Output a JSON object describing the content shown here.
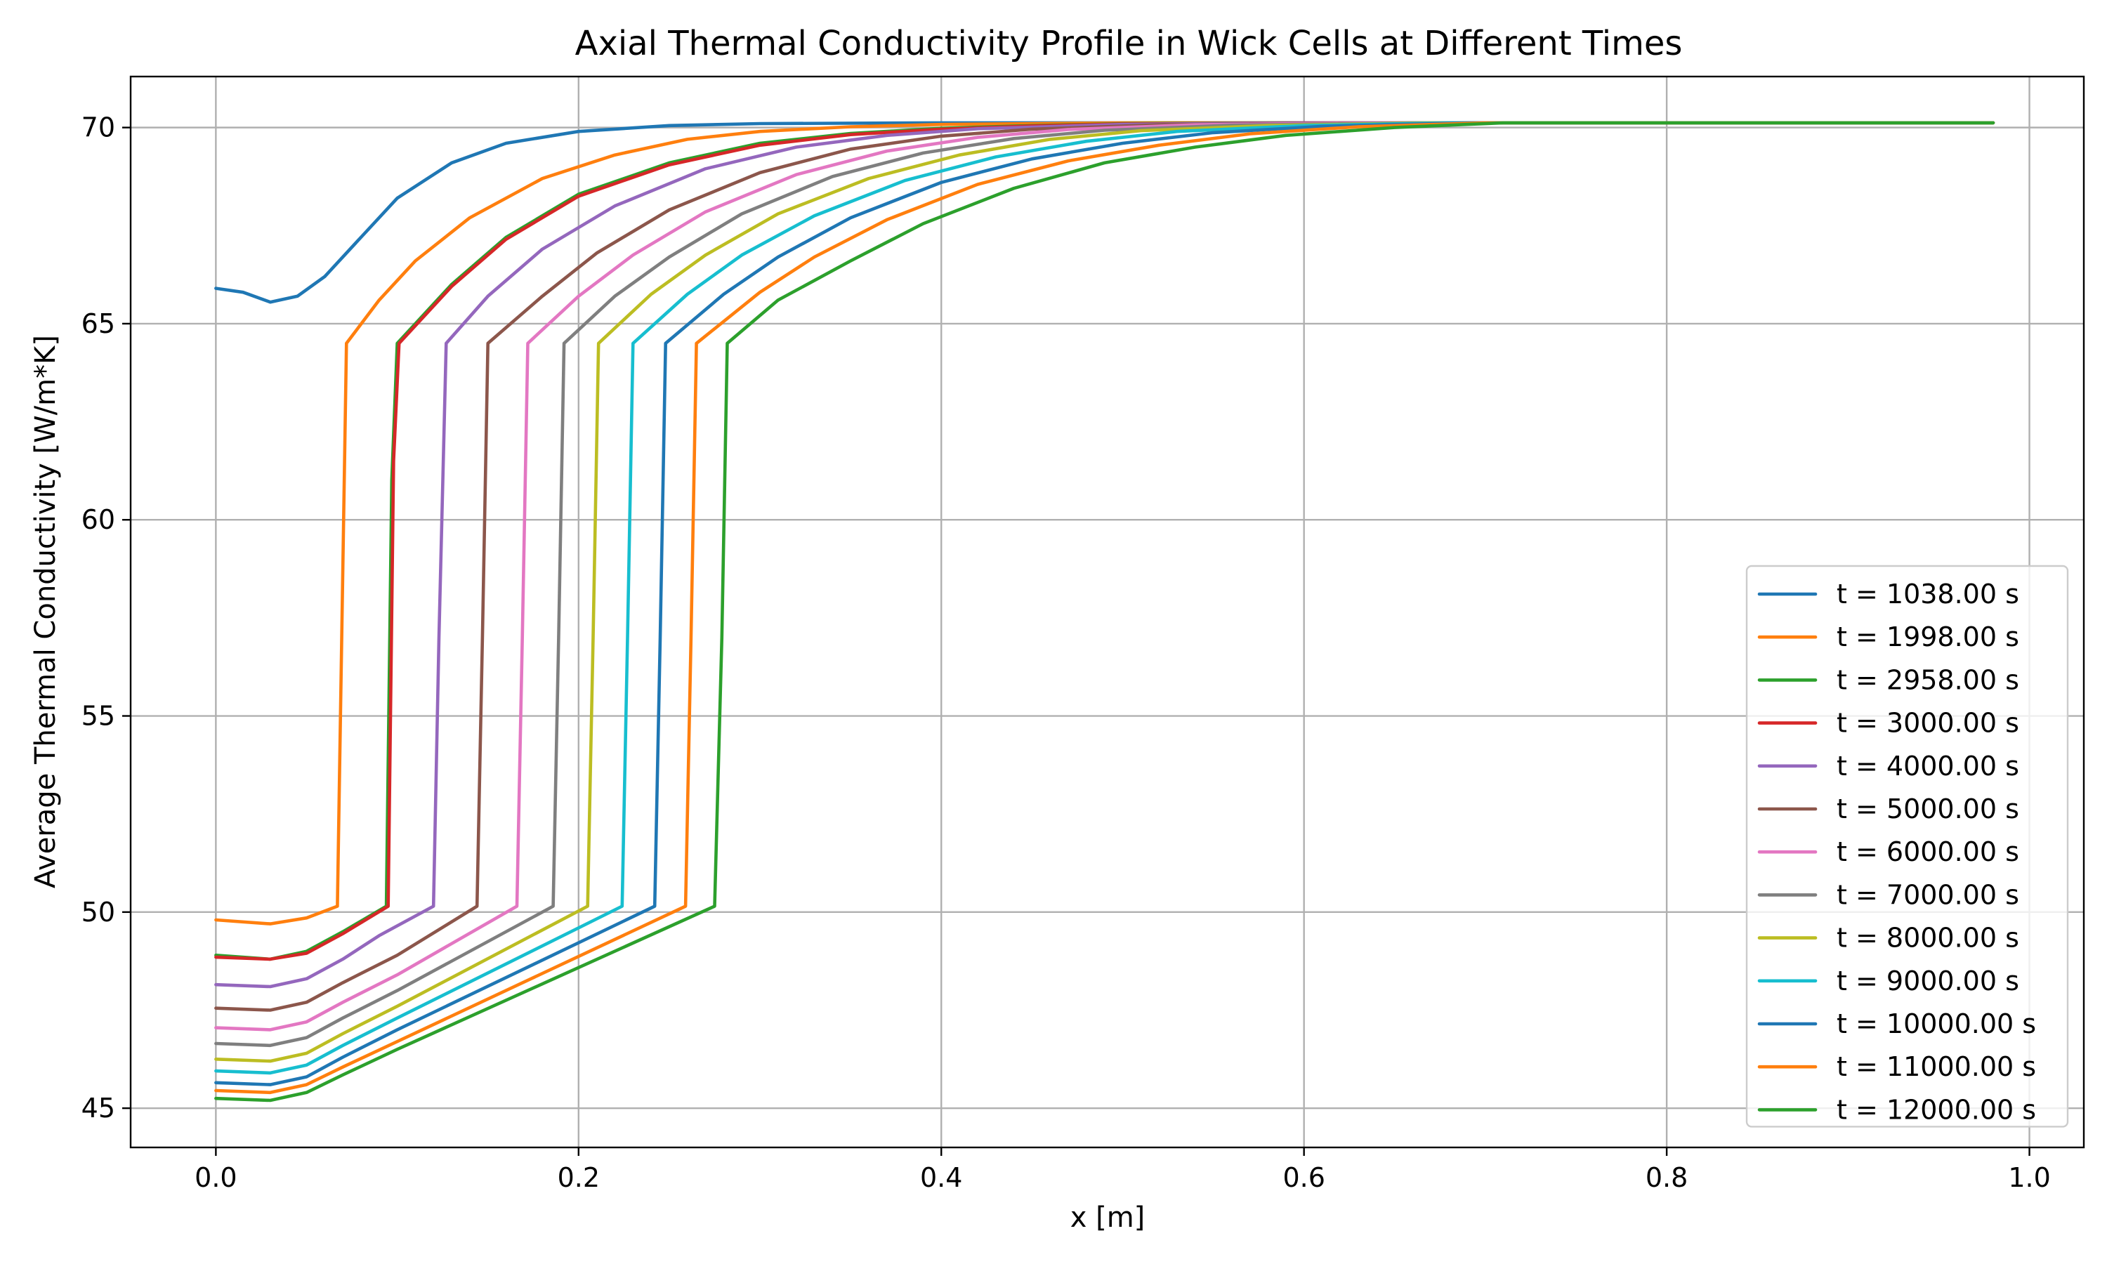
{
  "chart_data": {
    "type": "line",
    "title": "Axial Thermal Conductivity Profile in Wick Cells at Different Times",
    "xlabel": "x [m]",
    "ylabel": "Average Thermal Conductivity [W/m*K]",
    "xlim": [
      -0.047,
      1.03
    ],
    "ylim": [
      44.0,
      71.3
    ],
    "xticks": [
      0.0,
      0.2,
      0.4,
      0.6,
      0.8,
      1.0
    ],
    "xtick_labels": [
      "0.0",
      "0.2",
      "0.4",
      "0.6",
      "0.8",
      "1.0"
    ],
    "yticks": [
      45,
      50,
      55,
      60,
      65,
      70
    ],
    "ytick_labels": [
      "45",
      "50",
      "55",
      "60",
      "65",
      "70"
    ],
    "grid": true,
    "legend_position": "lower right",
    "series": [
      {
        "name": "t = 1038.00 s",
        "color": "#1f77b4",
        "x": [
          0.0,
          0.015,
          0.03,
          0.045,
          0.06,
          0.08,
          0.1,
          0.13,
          0.16,
          0.2,
          0.25,
          0.3,
          0.4,
          0.6,
          0.8,
          0.98
        ],
        "y": [
          65.9,
          65.8,
          65.55,
          65.7,
          66.2,
          67.2,
          68.2,
          69.1,
          69.6,
          69.9,
          70.05,
          70.1,
          70.12,
          70.12,
          70.12,
          70.12
        ]
      },
      {
        "name": "t = 1998.00 s",
        "color": "#ff7f0e",
        "x": [
          0.0,
          0.03,
          0.05,
          0.067,
          0.072,
          0.09,
          0.11,
          0.14,
          0.18,
          0.22,
          0.26,
          0.3,
          0.35,
          0.4,
          0.5,
          0.6,
          0.98
        ],
        "y": [
          49.8,
          49.7,
          49.85,
          50.15,
          64.5,
          65.6,
          66.6,
          67.7,
          68.7,
          69.3,
          69.7,
          69.9,
          70.02,
          70.08,
          70.12,
          70.12,
          70.12
        ]
      },
      {
        "name": "t = 2958.00 s",
        "color": "#2ca02c",
        "x": [
          0.0,
          0.03,
          0.05,
          0.07,
          0.094,
          0.097,
          0.1,
          0.13,
          0.16,
          0.2,
          0.25,
          0.3,
          0.35,
          0.4,
          0.45,
          0.5,
          0.6,
          0.98
        ],
        "y": [
          48.9,
          48.8,
          49.0,
          49.5,
          50.15,
          61.0,
          64.5,
          66.0,
          67.2,
          68.3,
          69.1,
          69.6,
          69.85,
          69.98,
          70.05,
          70.1,
          70.12,
          70.12
        ]
      },
      {
        "name": "t = 3000.00 s",
        "color": "#d62728",
        "x": [
          0.0,
          0.03,
          0.05,
          0.07,
          0.095,
          0.098,
          0.101,
          0.13,
          0.16,
          0.2,
          0.25,
          0.3,
          0.35,
          0.4,
          0.45,
          0.5,
          0.6,
          0.98
        ],
        "y": [
          48.85,
          48.8,
          48.95,
          49.45,
          50.15,
          61.5,
          64.5,
          65.95,
          67.15,
          68.25,
          69.05,
          69.55,
          69.82,
          69.96,
          70.04,
          70.09,
          70.12,
          70.12
        ]
      },
      {
        "name": "t = 4000.00 s",
        "color": "#9467bd",
        "x": [
          0.0,
          0.03,
          0.05,
          0.07,
          0.09,
          0.12,
          0.123,
          0.127,
          0.15,
          0.18,
          0.22,
          0.27,
          0.32,
          0.37,
          0.42,
          0.5,
          0.6,
          0.98
        ],
        "y": [
          48.15,
          48.1,
          48.3,
          48.8,
          49.4,
          50.15,
          57.0,
          64.5,
          65.7,
          66.9,
          68.0,
          68.95,
          69.5,
          69.8,
          69.97,
          70.08,
          70.12,
          70.12
        ]
      },
      {
        "name": "t = 5000.00 s",
        "color": "#8c564b",
        "x": [
          0.0,
          0.03,
          0.05,
          0.07,
          0.1,
          0.144,
          0.147,
          0.15,
          0.18,
          0.21,
          0.25,
          0.3,
          0.35,
          0.4,
          0.45,
          0.52,
          0.62,
          0.98
        ],
        "y": [
          47.55,
          47.5,
          47.7,
          48.2,
          48.9,
          50.15,
          57.0,
          64.5,
          65.7,
          66.8,
          67.9,
          68.85,
          69.45,
          69.78,
          69.96,
          70.07,
          70.12,
          70.12
        ]
      },
      {
        "name": "t = 6000.00 s",
        "color": "#e377c2",
        "x": [
          0.0,
          0.03,
          0.05,
          0.07,
          0.1,
          0.166,
          0.169,
          0.172,
          0.2,
          0.23,
          0.27,
          0.32,
          0.37,
          0.42,
          0.47,
          0.54,
          0.64,
          0.98
        ],
        "y": [
          47.05,
          47.0,
          47.2,
          47.7,
          48.4,
          50.15,
          57.0,
          64.5,
          65.7,
          66.75,
          67.85,
          68.8,
          69.4,
          69.75,
          69.95,
          70.07,
          70.12,
          70.12
        ]
      },
      {
        "name": "t = 7000.00 s",
        "color": "#7f7f7f",
        "x": [
          0.0,
          0.03,
          0.05,
          0.07,
          0.1,
          0.186,
          0.189,
          0.192,
          0.22,
          0.25,
          0.29,
          0.34,
          0.39,
          0.44,
          0.49,
          0.56,
          0.66,
          0.98
        ],
        "y": [
          46.65,
          46.6,
          46.8,
          47.3,
          48.0,
          50.15,
          57.0,
          64.5,
          65.7,
          66.7,
          67.8,
          68.75,
          69.35,
          69.72,
          69.93,
          70.06,
          70.12,
          70.12
        ]
      },
      {
        "name": "t = 8000.00 s",
        "color": "#bcbd22",
        "x": [
          0.0,
          0.03,
          0.05,
          0.07,
          0.1,
          0.205,
          0.208,
          0.211,
          0.24,
          0.27,
          0.31,
          0.36,
          0.41,
          0.46,
          0.51,
          0.58,
          0.67,
          0.98
        ],
        "y": [
          46.25,
          46.2,
          46.4,
          46.9,
          47.6,
          50.15,
          57.0,
          64.5,
          65.75,
          66.75,
          67.8,
          68.7,
          69.3,
          69.7,
          69.92,
          70.05,
          70.12,
          70.12
        ]
      },
      {
        "name": "t = 9000.00 s",
        "color": "#17becf",
        "x": [
          0.0,
          0.03,
          0.05,
          0.07,
          0.1,
          0.224,
          0.227,
          0.23,
          0.26,
          0.29,
          0.33,
          0.38,
          0.43,
          0.48,
          0.53,
          0.6,
          0.68,
          0.98
        ],
        "y": [
          45.95,
          45.9,
          46.1,
          46.6,
          47.3,
          50.15,
          57.0,
          64.5,
          65.75,
          66.75,
          67.75,
          68.65,
          69.25,
          69.65,
          69.9,
          70.05,
          70.12,
          70.12
        ]
      },
      {
        "name": "t = 10000.00 s",
        "color": "#1f77b4",
        "x": [
          0.0,
          0.03,
          0.05,
          0.07,
          0.1,
          0.242,
          0.245,
          0.248,
          0.28,
          0.31,
          0.35,
          0.4,
          0.45,
          0.5,
          0.55,
          0.61,
          0.69,
          0.98
        ],
        "y": [
          45.65,
          45.6,
          45.8,
          46.3,
          47.0,
          50.15,
          57.0,
          64.5,
          65.75,
          66.7,
          67.7,
          68.6,
          69.2,
          69.6,
          69.87,
          70.03,
          70.12,
          70.12
        ]
      },
      {
        "name": "t = 11000.00 s",
        "color": "#ff7f0e",
        "x": [
          0.0,
          0.03,
          0.05,
          0.07,
          0.1,
          0.259,
          0.262,
          0.265,
          0.3,
          0.33,
          0.37,
          0.42,
          0.47,
          0.52,
          0.57,
          0.63,
          0.7,
          0.98
        ],
        "y": [
          45.45,
          45.4,
          45.6,
          46.05,
          46.7,
          50.15,
          57.0,
          64.5,
          65.8,
          66.7,
          67.65,
          68.55,
          69.15,
          69.55,
          69.84,
          70.02,
          70.12,
          70.12
        ]
      },
      {
        "name": "t = 12000.00 s",
        "color": "#2ca02c",
        "x": [
          0.0,
          0.03,
          0.05,
          0.07,
          0.1,
          0.275,
          0.279,
          0.282,
          0.31,
          0.35,
          0.39,
          0.44,
          0.49,
          0.54,
          0.59,
          0.65,
          0.71,
          0.98
        ],
        "y": [
          45.25,
          45.2,
          45.4,
          45.85,
          46.5,
          50.15,
          57.0,
          64.5,
          65.6,
          66.6,
          67.55,
          68.45,
          69.1,
          69.5,
          69.8,
          70.0,
          70.12,
          70.12
        ]
      }
    ]
  }
}
